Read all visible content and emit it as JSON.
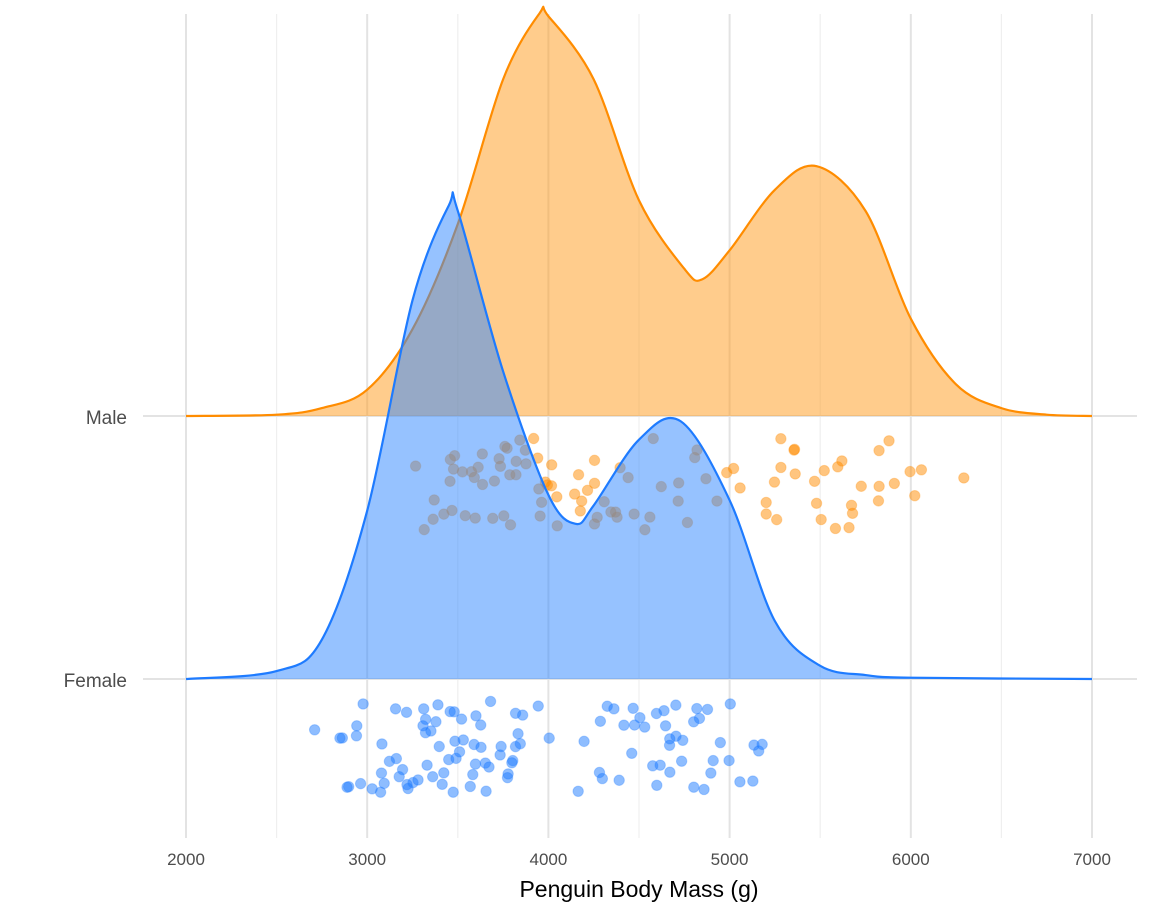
{
  "chart_data": {
    "type": "ridgeline",
    "title": "",
    "xlabel": "Penguin Body Mass (g)",
    "ylabel": "",
    "xlim": [
      2000,
      7000
    ],
    "xticks": [
      "2000",
      "3000",
      "4000",
      "5000",
      "6000",
      "7000"
    ],
    "grid": true,
    "legend": "none",
    "series": [
      {
        "name": "Male",
        "line_color": "#FF8C00",
        "fill_color": "#FF9A1A",
        "density_x": [
          2000,
          2500,
          2750,
          3000,
          3250,
          3500,
          3750,
          3950,
          4000,
          4250,
          4500,
          4750,
          4850,
          5000,
          5250,
          5480,
          5750,
          6000,
          6250,
          6500,
          6750,
          7000
        ],
        "density_rel": [
          0,
          0.005,
          0.03,
          0.1,
          0.33,
          0.73,
          1.28,
          1.53,
          1.52,
          1.28,
          0.82,
          0.56,
          0.52,
          0.63,
          0.86,
          0.95,
          0.78,
          0.37,
          0.12,
          0.03,
          0.005,
          0
        ],
        "points": [
          3250,
          3300,
          3350,
          3400,
          3400,
          3450,
          3450,
          3450,
          3500,
          3500,
          3500,
          3550,
          3550,
          3550,
          3600,
          3600,
          3650,
          3650,
          3650,
          3700,
          3700,
          3700,
          3750,
          3750,
          3750,
          3800,
          3800,
          3800,
          3800,
          3850,
          3900,
          3900,
          3900,
          3950,
          3950,
          3950,
          3950,
          4000,
          4000,
          4000,
          4050,
          4050,
          4100,
          4100,
          4150,
          4150,
          4200,
          4200,
          4250,
          4250,
          4300,
          4300,
          4300,
          4350,
          4400,
          4400,
          4450,
          4450,
          4450,
          4500,
          4550,
          4600,
          4650,
          4700,
          4700,
          4750,
          4800,
          4800,
          4850,
          4950,
          5000,
          5050,
          5100,
          5150,
          5200,
          5250,
          5250,
          5300,
          5300,
          5350,
          5400,
          5400,
          5450,
          5500,
          5500,
          5550,
          5550,
          5600,
          5650,
          5650,
          5700,
          5700,
          5750,
          5800,
          5800,
          5850,
          5850,
          5950,
          6000,
          6000,
          6050,
          6300
        ]
      },
      {
        "name": "Female",
        "line_color": "#1E7BFF",
        "fill_color": "#2E86FF",
        "density_x": [
          2000,
          2500,
          2750,
          3000,
          3250,
          3450,
          3500,
          3750,
          4000,
          4150,
          4250,
          4500,
          4730,
          5000,
          5250,
          5500,
          5750,
          6000,
          7000
        ],
        "density_rel": [
          0,
          0.03,
          0.15,
          0.64,
          1.44,
          1.8,
          1.78,
          1.17,
          0.7,
          0.59,
          0.66,
          0.91,
          0.98,
          0.68,
          0.22,
          0.05,
          0.015,
          0.005,
          0
        ],
        "points": [
          2700,
          2850,
          2850,
          2900,
          2900,
          2900,
          2925,
          2950,
          3000,
          3050,
          3050,
          3050,
          3075,
          3100,
          3150,
          3150,
          3150,
          3175,
          3200,
          3200,
          3250,
          3250,
          3250,
          3275,
          3300,
          3300,
          3300,
          3325,
          3350,
          3350,
          3350,
          3400,
          3400,
          3400,
          3425,
          3450,
          3450,
          3450,
          3450,
          3475,
          3500,
          3500,
          3500,
          3525,
          3550,
          3550,
          3550,
          3600,
          3600,
          3600,
          3625,
          3650,
          3650,
          3650,
          3700,
          3700,
          3700,
          3700,
          3725,
          3750,
          3750,
          3800,
          3800,
          3800,
          3800,
          3850,
          3900,
          3950,
          3950,
          4150,
          4150,
          4250,
          4300,
          4300,
          4350,
          4400,
          4400,
          4400,
          4450,
          4450,
          4500,
          4550,
          4575,
          4600,
          4600,
          4625,
          4650,
          4650,
          4650,
          4700,
          4700,
          4700,
          4700,
          4725,
          4750,
          4750,
          4775,
          4800,
          4800,
          4850,
          4850,
          4875,
          4900,
          4925,
          4950,
          5000,
          5000,
          5050,
          5100,
          5150,
          5200,
          5200
        ]
      }
    ]
  }
}
